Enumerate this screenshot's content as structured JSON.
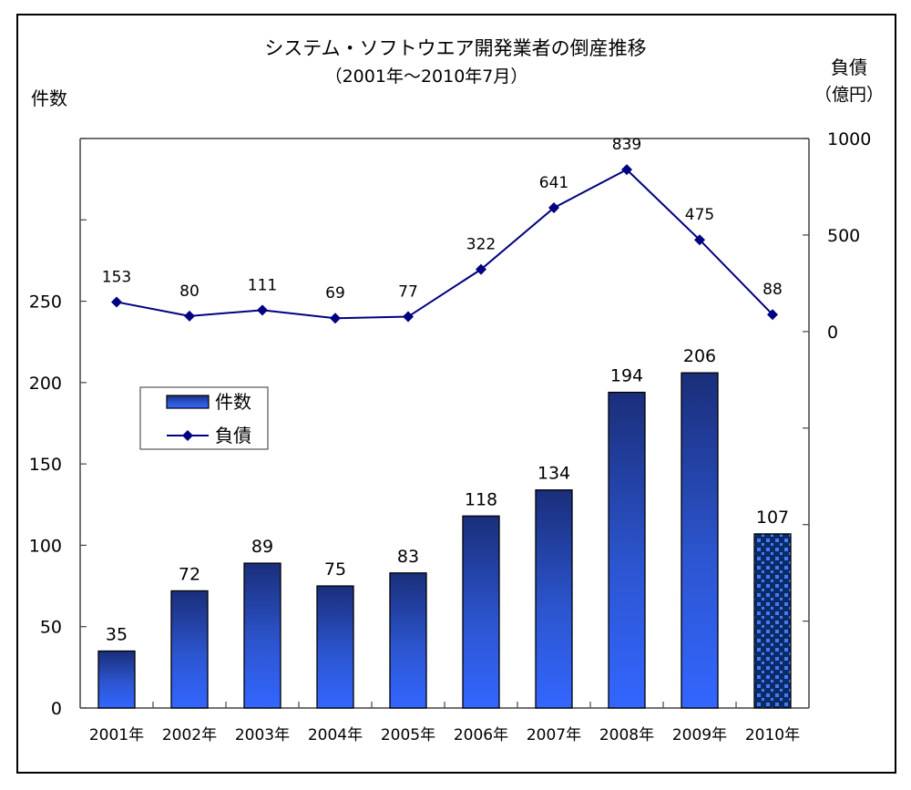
{
  "chart_data": {
    "type": "bar+line",
    "title": "システム・ソフトウエア開発業者の倒産推移",
    "subtitle": "（2001年～2010年7月）",
    "left_axis": {
      "label": "件数",
      "ticks": [
        "0",
        "50",
        "100",
        "150",
        "200",
        "250"
      ],
      "range": [
        0,
        350
      ]
    },
    "right_axis": {
      "label": "負債",
      "unit_label": "（億円）",
      "ticks": [
        "0",
        "500",
        "1000"
      ],
      "range": [
        -1950,
        1000
      ]
    },
    "categories": [
      "2001年",
      "2002年",
      "2003年",
      "2004年",
      "2005年",
      "2006年",
      "2007年",
      "2008年",
      "2009年",
      "2010年"
    ],
    "series": [
      {
        "name": "件数",
        "type": "bar",
        "axis": "left",
        "values": [
          35,
          72,
          89,
          75,
          83,
          118,
          134,
          194,
          206,
          107
        ],
        "color": "#2f5de0",
        "last_bar_patterned": true
      },
      {
        "name": "負債",
        "type": "line",
        "axis": "right",
        "values": [
          153,
          80,
          111,
          69,
          77,
          322,
          641,
          839,
          475,
          88
        ],
        "color": "#000080"
      }
    ],
    "legend": {
      "position": "left-middle",
      "items": [
        "件数",
        "負債"
      ]
    },
    "grid": false
  }
}
